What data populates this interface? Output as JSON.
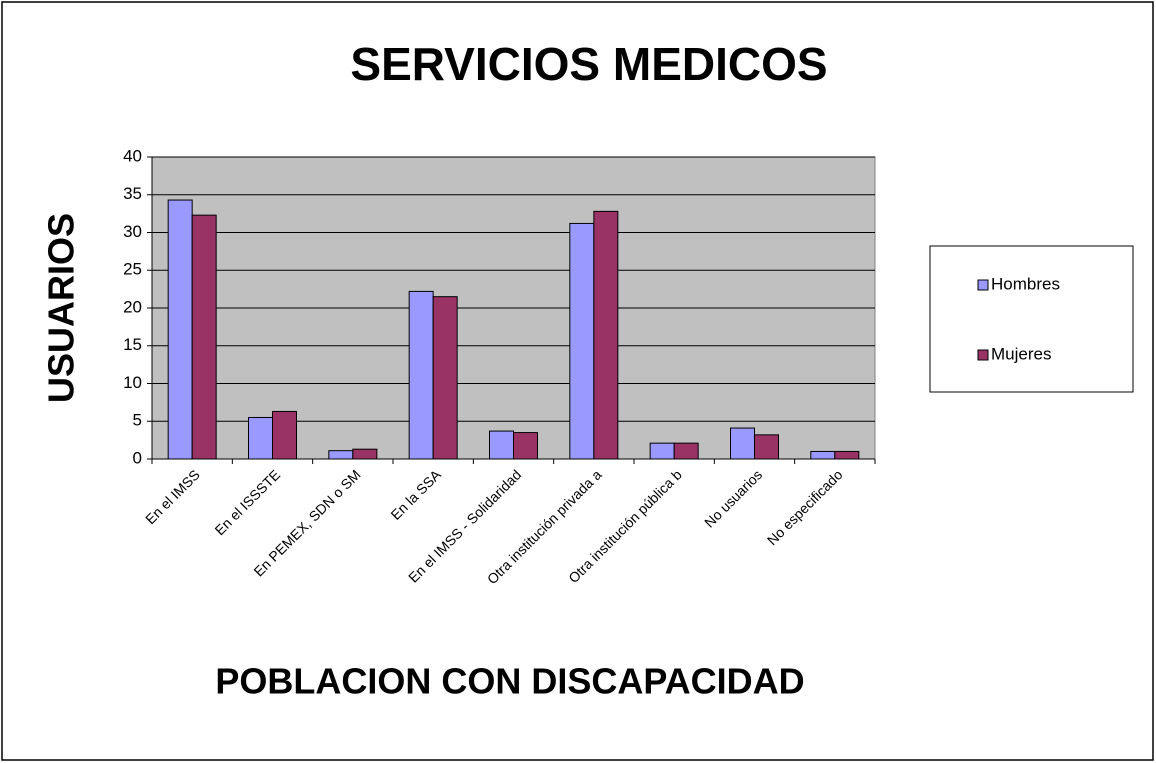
{
  "chart_data": {
    "type": "bar",
    "title": "SERVICIOS MEDICOS",
    "x_label": "POBLACION CON DISCAPACIDAD",
    "y_label": "USUARIOS",
    "categories": [
      "En el IMSS",
      "En el ISSSTE",
      "En PEMEX, SDN o SM",
      "En la SSA",
      "En el IMSS - Solidaridad",
      "Otra institución privada a",
      "Otra institución pública b",
      "No usuarios",
      "No especificado"
    ],
    "series": [
      {
        "name": "Hombres",
        "color": "#9999ff",
        "values": [
          34.3,
          5.5,
          1.1,
          22.2,
          3.7,
          31.2,
          2.1,
          4.1,
          1.0
        ]
      },
      {
        "name": "Mujeres",
        "color": "#993366",
        "values": [
          32.3,
          6.3,
          1.3,
          21.5,
          3.5,
          32.8,
          2.1,
          3.2,
          1.0
        ]
      }
    ],
    "ylim": [
      0,
      40
    ],
    "yticks": [
      0,
      5,
      10,
      15,
      20,
      25,
      30,
      35,
      40
    ],
    "grid": true,
    "legend": "right"
  }
}
